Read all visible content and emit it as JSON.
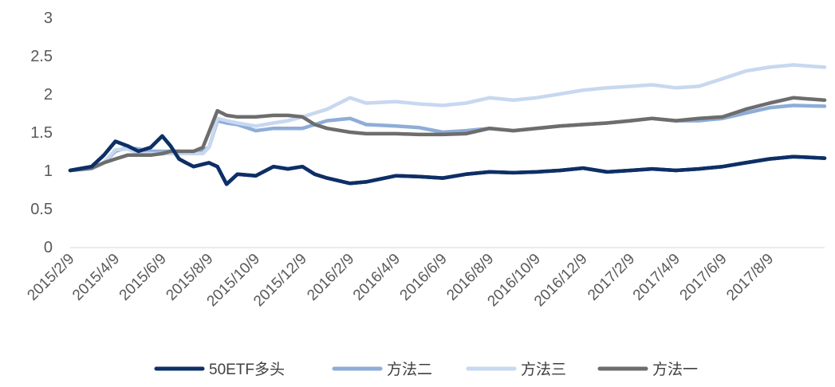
{
  "chart_data": {
    "type": "line",
    "title": "",
    "xlabel": "",
    "ylabel": "",
    "ylim": [
      0,
      3
    ],
    "y_ticks": [
      "0",
      "0.5",
      "1",
      "1.5",
      "2",
      "2.5",
      "3"
    ],
    "x_tick_labels": [
      "2015/2/9",
      "2015/4/9",
      "2015/6/9",
      "2015/8/9",
      "2015/10/9",
      "2015/12/9",
      "2016/2/9",
      "2016/4/9",
      "2016/6/9",
      "2016/8/9",
      "2016/10/9",
      "2016/12/9",
      "2017/2/9",
      "2017/4/9",
      "2017/6/9",
      "2017/8/9"
    ],
    "grid": false,
    "legend_position": "bottom",
    "x": [
      "2015/2/9",
      "2015/3/9",
      "2015/3/25",
      "2015/4/9",
      "2015/4/25",
      "2015/5/9",
      "2015/5/25",
      "2015/6/9",
      "2015/6/20",
      "2015/7/1",
      "2015/7/10",
      "2015/7/20",
      "2015/8/1",
      "2015/8/9",
      "2015/8/20",
      "2015/9/1",
      "2015/9/15",
      "2015/10/9",
      "2015/11/1",
      "2015/11/20",
      "2015/12/9",
      "2015/12/25",
      "2016/1/10",
      "2016/2/9",
      "2016/3/1",
      "2016/4/9",
      "2016/5/9",
      "2016/6/9",
      "2016/7/9",
      "2016/8/9",
      "2016/9/9",
      "2016/10/9",
      "2016/11/9",
      "2016/12/9",
      "2017/1/9",
      "2017/2/9",
      "2017/3/9",
      "2017/4/9",
      "2017/5/9",
      "2017/6/9",
      "2017/7/9",
      "2017/8/9",
      "2017/9/9",
      "2017/10/20"
    ],
    "series": [
      {
        "name": "50ETF多头",
        "color": "#0d2f66",
        "values": [
          1.0,
          1.05,
          1.2,
          1.38,
          1.32,
          1.25,
          1.3,
          1.45,
          1.32,
          1.15,
          1.1,
          1.05,
          1.08,
          1.1,
          1.05,
          0.82,
          0.95,
          0.93,
          1.05,
          1.02,
          1.05,
          0.95,
          0.9,
          0.83,
          0.85,
          0.93,
          0.92,
          0.9,
          0.95,
          0.98,
          0.97,
          0.98,
          1.0,
          1.03,
          0.98,
          1.0,
          1.02,
          1.0,
          1.02,
          1.05,
          1.1,
          1.15,
          1.18,
          1.16
        ]
      },
      {
        "name": "方法二",
        "color": "#8eadd8",
        "values": [
          1.0,
          1.02,
          1.1,
          1.25,
          1.3,
          1.28,
          1.25,
          1.25,
          1.25,
          1.25,
          1.24,
          1.25,
          1.26,
          1.3,
          1.65,
          1.62,
          1.6,
          1.52,
          1.55,
          1.55,
          1.55,
          1.6,
          1.65,
          1.68,
          1.6,
          1.58,
          1.56,
          1.5,
          1.52,
          1.55,
          1.52,
          1.55,
          1.58,
          1.6,
          1.62,
          1.65,
          1.68,
          1.65,
          1.65,
          1.68,
          1.75,
          1.82,
          1.85,
          1.84
        ]
      },
      {
        "name": "方法三",
        "color": "#c7d8f0",
        "values": [
          1.0,
          1.02,
          1.1,
          1.27,
          1.28,
          1.22,
          1.22,
          1.22,
          1.22,
          1.22,
          1.22,
          1.22,
          1.22,
          1.3,
          1.68,
          1.65,
          1.62,
          1.58,
          1.62,
          1.65,
          1.7,
          1.75,
          1.8,
          1.95,
          1.88,
          1.9,
          1.87,
          1.85,
          1.88,
          1.95,
          1.92,
          1.95,
          2.0,
          2.05,
          2.08,
          2.1,
          2.12,
          2.08,
          2.1,
          2.2,
          2.3,
          2.35,
          2.38,
          2.35
        ]
      },
      {
        "name": "方法一",
        "color": "#6d6d6d",
        "values": [
          1.0,
          1.03,
          1.1,
          1.15,
          1.2,
          1.2,
          1.2,
          1.22,
          1.25,
          1.25,
          1.25,
          1.25,
          1.3,
          1.5,
          1.78,
          1.72,
          1.7,
          1.7,
          1.72,
          1.72,
          1.7,
          1.6,
          1.55,
          1.5,
          1.48,
          1.48,
          1.47,
          1.47,
          1.48,
          1.55,
          1.52,
          1.55,
          1.58,
          1.6,
          1.62,
          1.65,
          1.68,
          1.65,
          1.68,
          1.7,
          1.8,
          1.88,
          1.95,
          1.92
        ]
      }
    ]
  }
}
